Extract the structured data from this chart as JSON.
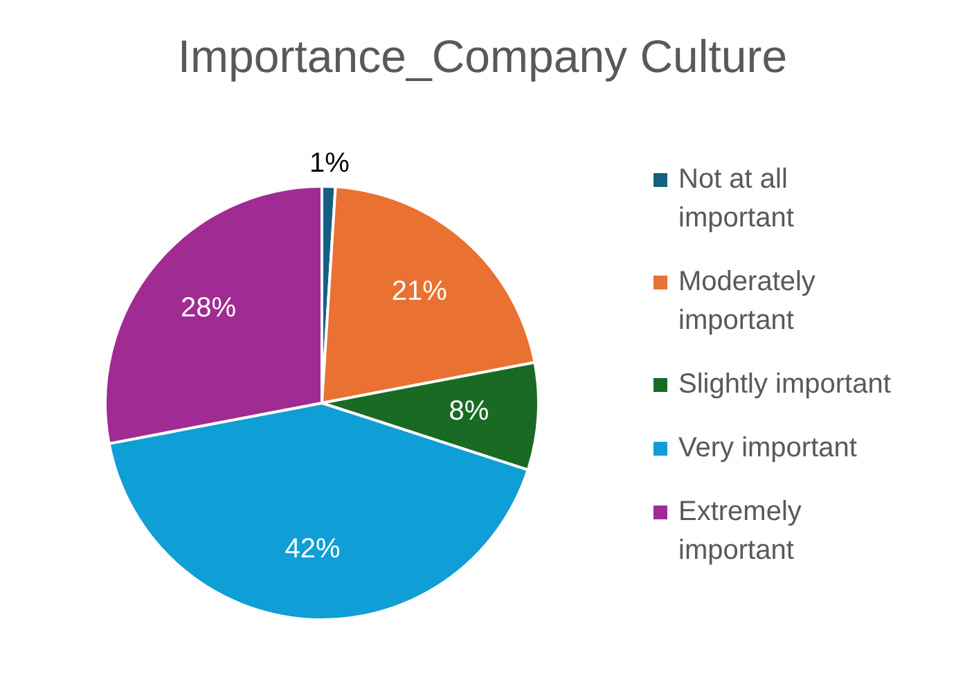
{
  "chart_data": {
    "type": "pie",
    "title": "Importance_Company Culture",
    "categories": [
      "Not at all important",
      "Moderately important",
      "Slightly important",
      "Very important",
      "Extremely important"
    ],
    "values": [
      1,
      21,
      8,
      42,
      28
    ],
    "colors": [
      "#156082",
      "#e97132",
      "#196b24",
      "#0f9ed5",
      "#a02b93"
    ],
    "value_labels": [
      "1%",
      "21%",
      "8%",
      "42%",
      "28%"
    ],
    "legend": "right"
  }
}
